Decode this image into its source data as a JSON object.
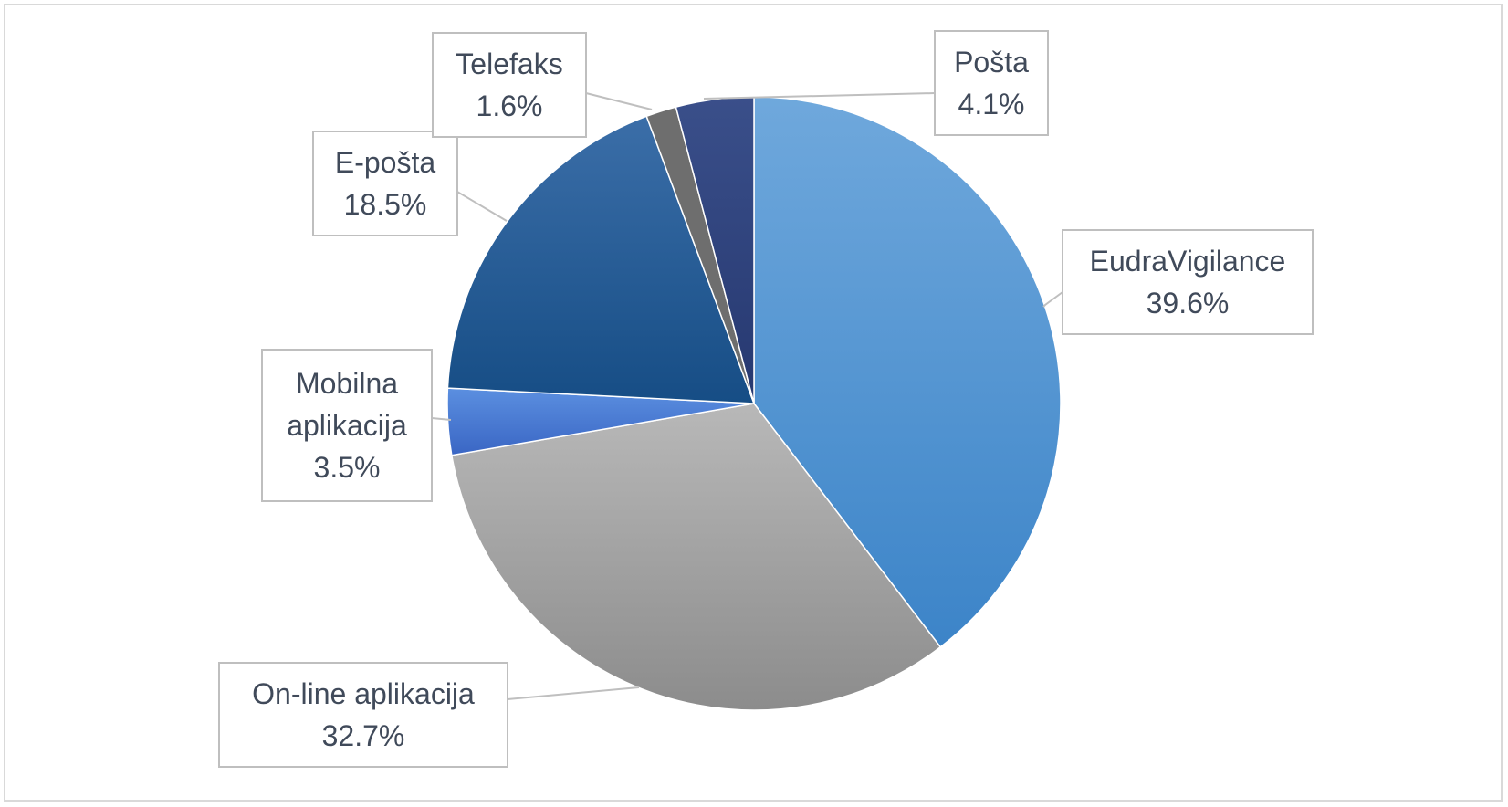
{
  "chart_data": {
    "type": "pie",
    "title": "",
    "legend": "none",
    "slices": [
      {
        "name": "EudraVigilance",
        "value": 39.6,
        "label": "39.6%",
        "color_top": "#6fa8dc",
        "color_bottom": "#3c84c8"
      },
      {
        "name": "On-line aplikacija",
        "value": 32.7,
        "label": "32.7%",
        "color_top": "#b8b8b8",
        "color_bottom": "#8c8c8c"
      },
      {
        "name": "Mobilna aplikacija",
        "value": 3.5,
        "label": "3.5%",
        "color_top": "#5b8fe0",
        "color_bottom": "#3a66c4"
      },
      {
        "name": "E-pošta",
        "value": 18.5,
        "label": "18.5%",
        "color_top": "#3b6ea8",
        "color_bottom": "#164d85"
      },
      {
        "name": "Telefaks",
        "value": 1.6,
        "label": "1.6%",
        "color_top": "#6e6e6e",
        "color_bottom": "#6e6e6e"
      },
      {
        "name": "Pošta",
        "value": 4.1,
        "label": "4.1%",
        "color_top": "#3a4f8a",
        "color_bottom": "#263870"
      }
    ]
  }
}
